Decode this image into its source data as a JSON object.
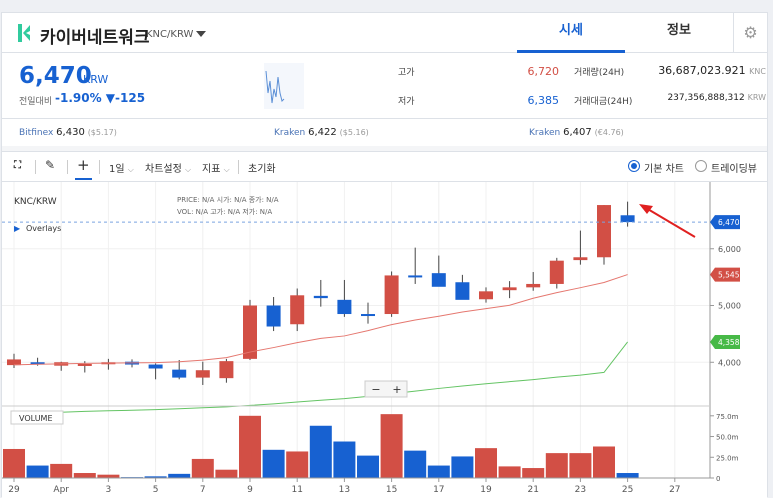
{
  "header": {
    "coin_name": "카이버네트워크",
    "pair": "KNC/KRW",
    "tab_quote": "시세",
    "tab_info": "정보",
    "settings_icon": "gear-icon"
  },
  "summary": {
    "price": "6,470",
    "currency": "KRW",
    "change_label": "전일대비",
    "change_value": "-1.90% ▼-125",
    "high_label": "고가",
    "high_value": "6,720",
    "low_label": "저가",
    "low_value": "6,385",
    "volume_label": "거래량(24H)",
    "volume_value": "36,687,023.921",
    "volume_unit": "KNC",
    "amount_label": "거래대금(24H)",
    "amount_value": "237,356,888,312",
    "amount_unit": "KRW"
  },
  "exchanges": [
    {
      "name": "Bitfinex",
      "price": "6,430",
      "sub": "($5.17)"
    },
    {
      "name": "Kraken",
      "price": "6,422",
      "sub": "($5.16)"
    },
    {
      "name": "Kraken",
      "price": "6,407",
      "sub": "(€4.76)"
    }
  ],
  "toolbar": {
    "interval": "1일",
    "chart_settings": "차트설정",
    "indicators": "지표",
    "reset": "초기화",
    "basic_chart": "기본 차트",
    "trading_view": "트레이딩뷰"
  },
  "chart_labels": {
    "symbol": "KNC/KRW",
    "overlays": "Overlays",
    "ohlc_row1": "PRICE: N/A   시가: N/A   종가: N/A",
    "ohlc_row2": "VOL: N/A   고가: N/A   저가: N/A",
    "volume_title": "VOLUME",
    "zoom_out": "−",
    "zoom_in": "+"
  },
  "chart_data": {
    "type": "candlestick",
    "x_labels": [
      "29",
      "Apr",
      "3",
      "5",
      "7",
      "9",
      "11",
      "13",
      "15",
      "17",
      "19",
      "21",
      "23",
      "25",
      "27"
    ],
    "candles": [
      {
        "o": 3950,
        "h": 4150,
        "l": 3900,
        "c": 4050
      },
      {
        "o": 4000,
        "h": 4080,
        "l": 3940,
        "c": 3960
      },
      {
        "o": 3940,
        "h": 4010,
        "l": 3850,
        "c": 4000
      },
      {
        "o": 3960,
        "h": 4020,
        "l": 3820,
        "c": 3970
      },
      {
        "o": 3970,
        "h": 4060,
        "l": 3870,
        "c": 4000
      },
      {
        "o": 4010,
        "h": 4050,
        "l": 3910,
        "c": 3960
      },
      {
        "o": 3960,
        "h": 3980,
        "l": 3700,
        "c": 3890
      },
      {
        "o": 3870,
        "h": 4040,
        "l": 3700,
        "c": 3730
      },
      {
        "o": 3730,
        "h": 4010,
        "l": 3600,
        "c": 3860
      },
      {
        "o": 3720,
        "h": 4060,
        "l": 3640,
        "c": 4020
      },
      {
        "o": 4060,
        "h": 5100,
        "l": 4040,
        "c": 5000
      },
      {
        "o": 5000,
        "h": 5150,
        "l": 4550,
        "c": 4630
      },
      {
        "o": 4670,
        "h": 5300,
        "l": 4550,
        "c": 5180
      },
      {
        "o": 5170,
        "h": 5450,
        "l": 4980,
        "c": 5130
      },
      {
        "o": 5100,
        "h": 5450,
        "l": 4800,
        "c": 4850
      },
      {
        "o": 4850,
        "h": 5050,
        "l": 4680,
        "c": 4830
      },
      {
        "o": 4850,
        "h": 5600,
        "l": 4800,
        "c": 5530
      },
      {
        "o": 5530,
        "h": 6020,
        "l": 5380,
        "c": 5500
      },
      {
        "o": 5570,
        "h": 5880,
        "l": 5350,
        "c": 5330
      },
      {
        "o": 5410,
        "h": 5540,
        "l": 5130,
        "c": 5100
      },
      {
        "o": 5110,
        "h": 5320,
        "l": 5050,
        "c": 5250
      },
      {
        "o": 5270,
        "h": 5430,
        "l": 5130,
        "c": 5320
      },
      {
        "o": 5320,
        "h": 5590,
        "l": 5260,
        "c": 5380
      },
      {
        "o": 5380,
        "h": 5840,
        "l": 5300,
        "c": 5790
      },
      {
        "o": 5800,
        "h": 6320,
        "l": 5720,
        "c": 5850
      },
      {
        "o": 5850,
        "h": 6770,
        "l": 5720,
        "c": 6770
      },
      {
        "o": 6590,
        "h": 6830,
        "l": 6390,
        "c": 6470
      }
    ],
    "ma_red": [
      3955,
      3965,
      3972,
      3980,
      3986,
      3989,
      3993,
      4010,
      4037,
      4081,
      4180,
      4259,
      4347,
      4421,
      4464,
      4558,
      4664,
      4745,
      4811,
      4886,
      4945,
      5004,
      5128,
      5227,
      5314,
      5405,
      5545
    ],
    "ma_green": [
      3080,
      3100,
      3120,
      3135,
      3145,
      3155,
      3165,
      3180,
      3198,
      3215,
      3240,
      3268,
      3300,
      3330,
      3360,
      3400,
      3445,
      3491,
      3539,
      3582,
      3621,
      3658,
      3694,
      3738,
      3774,
      3821,
      4358
    ],
    "volumes": [
      35,
      15,
      17,
      6,
      4,
      1,
      2,
      5,
      23,
      10,
      75,
      34,
      32,
      63,
      44,
      27,
      77,
      33,
      15,
      26,
      36,
      14,
      12,
      30,
      30,
      38,
      6
    ],
    "price_ticks": [
      4000,
      5000,
      6000
    ],
    "price_tick_labels": [
      "4,000",
      "5,000",
      "6,000"
    ],
    "volume_ticks": [
      "0",
      "25.0m",
      "50.0m",
      "75.0m"
    ],
    "current_price_label": "6,470",
    "ma_red_label": "5,545",
    "ma_green_label": "4,358",
    "ylim": [
      3300,
      7000
    ],
    "colors": {
      "up": "#d24f45",
      "down": "#1761d1",
      "ma_red": "#e5776f",
      "ma_green": "#64c464",
      "annotation": "#e02020"
    }
  }
}
